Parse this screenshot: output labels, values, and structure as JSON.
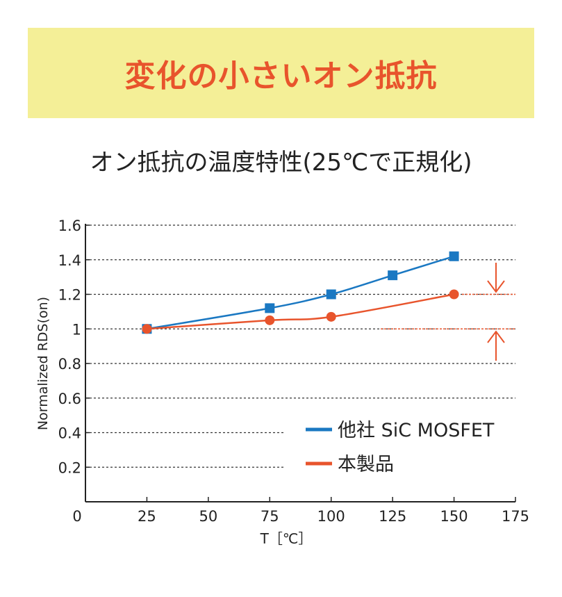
{
  "header": {
    "title": "変化の小さいオン抵抗"
  },
  "colors": {
    "banner_bg": "#f4ef97",
    "accent": "#e8542c",
    "competitor": "#1a78c2",
    "text": "#222222"
  },
  "chart_data": {
    "type": "line",
    "title": "オン抵抗の温度特性(25℃で正規化)",
    "xlabel": "T［℃］",
    "ylabel": "Normalized RDS(on)",
    "xlim": [
      0,
      175
    ],
    "ylim": [
      0,
      1.6
    ],
    "x_ticks": [
      "0",
      "25",
      "50",
      "75",
      "100",
      "125",
      "150",
      "175"
    ],
    "y_ticks": [
      "0.2",
      "0.4",
      "0.6",
      "0.8",
      "1",
      "1.2",
      "1.4",
      "1.6"
    ],
    "series": [
      {
        "name": "他社 SiC MOSFET",
        "color": "#1a78c2",
        "marker": "square",
        "x": [
          25,
          75,
          100,
          125,
          150
        ],
        "y": [
          1.0,
          1.12,
          1.2,
          1.31,
          1.42
        ]
      },
      {
        "name": "本製品",
        "color": "#e8542c",
        "marker": "circle",
        "x": [
          25,
          75,
          100,
          150
        ],
        "y": [
          1.0,
          1.05,
          1.07,
          1.2
        ]
      }
    ],
    "legend_position": "lower-right"
  }
}
